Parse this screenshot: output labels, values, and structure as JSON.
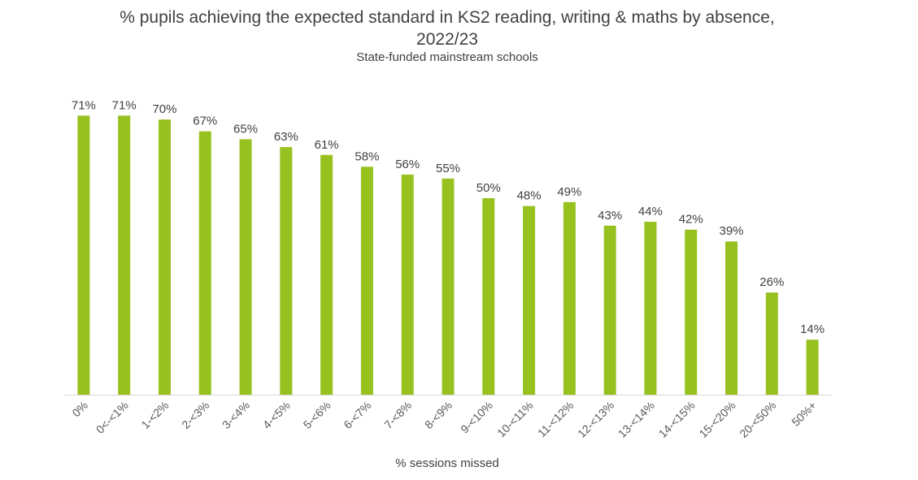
{
  "chart_data": {
    "type": "bar",
    "title": "% pupils achieving the expected standard in KS2 reading, writing & maths by absence, 2022/23",
    "subtitle": "State-funded mainstream schools",
    "xlabel": "% sessions missed",
    "ylabel": "",
    "ylim": [
      0,
      100
    ],
    "grid": false,
    "categories": [
      "0%",
      "0<-<1%",
      "1-<2%",
      "2-<3%",
      "3-<4%",
      "4-<5%",
      "5-<6%",
      "6-<7%",
      "7-<8%",
      "8-<9%",
      "9-<10%",
      "10-<11%",
      "11-<12%",
      "12-<13%",
      "13-<14%",
      "14-<15%",
      "15-<20%",
      "20-<50%",
      "50%+"
    ],
    "values": [
      71,
      71,
      70,
      67,
      65,
      63,
      61,
      58,
      56,
      55,
      50,
      48,
      49,
      43,
      44,
      42,
      39,
      26,
      14
    ],
    "data_labels": [
      "71%",
      "71%",
      "70%",
      "67%",
      "65%",
      "63%",
      "61%",
      "58%",
      "56%",
      "55%",
      "50%",
      "48%",
      "49%",
      "43%",
      "44%",
      "42%",
      "39%",
      "26%",
      "14%"
    ],
    "bar_color": "#97c11f",
    "axis_color": "#d9d9d9"
  }
}
